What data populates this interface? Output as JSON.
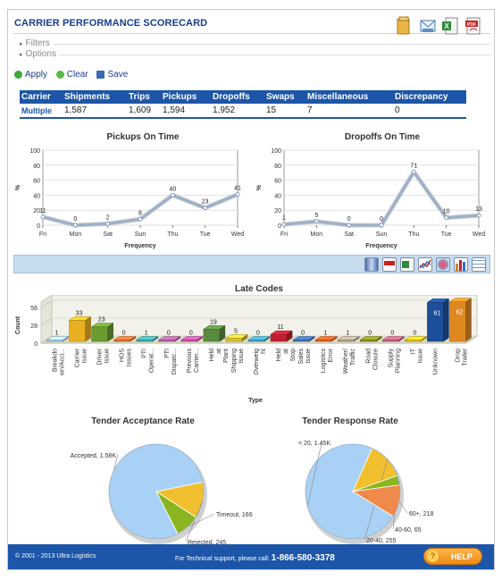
{
  "header": {
    "title": "CARRIER PERFORMANCE SCORECARD",
    "export_icons": [
      {
        "name": "folder-icon",
        "label": "",
        "color": "#d9a23a"
      },
      {
        "name": "email-icon",
        "label": "",
        "color": "#5a8fc8"
      },
      {
        "name": "excel-icon",
        "label": "X",
        "color": "#2e8b3a"
      },
      {
        "name": "pdf-icon",
        "label": "PDF",
        "color": "#c82020"
      }
    ]
  },
  "collapsers": {
    "filters": "Filters",
    "options": "Options"
  },
  "actions": {
    "apply": "Apply",
    "clear": "Clear",
    "save": "Save"
  },
  "summary": {
    "headers": [
      "Carrier",
      "Shipments",
      "Trips",
      "Pickups",
      "Dropoffs",
      "Swaps",
      "Miscellaneous",
      "Discrepancy"
    ],
    "row": [
      "Multiple",
      "1,587",
      "1,609",
      "1,594",
      "1,952",
      "15",
      "7",
      "0"
    ]
  },
  "toolbar_icons": [
    "cylinder-chart-icon",
    "pdf-icon",
    "excel-icon",
    "line-chart-icon",
    "pie-chart-icon",
    "bar-chart-icon",
    "table-icon"
  ],
  "chart_data": [
    {
      "type": "line",
      "title": "Pickups On Time",
      "xlabel": "Frequency",
      "ylabel": "%",
      "categories": [
        "Fri",
        "Mon",
        "Sat",
        "Sun",
        "Thu",
        "Tue",
        "Wed"
      ],
      "values": [
        11,
        0,
        2,
        8,
        40,
        23,
        41
      ],
      "yticks": [
        "0",
        "20",
        "40",
        "60",
        "80",
        "100"
      ],
      "ylim": [
        0,
        100
      ]
    },
    {
      "type": "line",
      "title": "Dropoffs On Time",
      "xlabel": "Frequency",
      "ylabel": "%",
      "categories": [
        "Fri",
        "Mon",
        "Sat",
        "Sun",
        "Thu",
        "Tue",
        "Wed"
      ],
      "values": [
        1,
        5,
        0,
        0,
        71,
        10,
        13
      ],
      "yticks": [
        "0",
        "20",
        "40",
        "60",
        "80",
        "100"
      ],
      "ylim": [
        0,
        100
      ]
    },
    {
      "type": "bar",
      "title": "Late Codes",
      "xlabel": "Type",
      "ylabel": "Count",
      "yticks": [
        "0",
        "28",
        "56"
      ],
      "ylim": [
        0,
        56
      ],
      "categories": [
        "Breakdo wn/Acci...",
        "Carrier Issue",
        "Driver Issue",
        "HOS Issues",
        "PTI Operat...",
        "PTI Dispatc...",
        "Previous Carrier...",
        "Held at Plant",
        "Shipping Issue",
        "Overweig ht",
        "Held at Stop",
        "Sales Issue",
        "Logistics Error",
        "Weather/ Traffic",
        "Road Closure",
        "Supply Planning",
        "IT Issue",
        "Unknown",
        "Drop Trailer"
      ],
      "values": [
        1,
        33,
        23,
        0,
        1,
        0,
        0,
        19,
        5,
        0,
        11,
        0,
        1,
        1,
        0,
        0,
        0,
        61,
        62
      ],
      "colors": [
        "#a8c8e8",
        "#e8b020",
        "#6a9a30",
        "#e07030",
        "#40a8a8",
        "#b060a0",
        "#c050a0",
        "#5a8a40",
        "#d8c030",
        "#40a0c0",
        "#c02030",
        "#4070b0",
        "#e06020",
        "#b0a090",
        "#8a9020",
        "#c06080",
        "#e0c020",
        "#1d4f9a",
        "#e08820"
      ]
    },
    {
      "type": "pie",
      "title": "Tender Acceptance Rate",
      "slices": [
        {
          "label": "Accepted, 1.58K",
          "value": 1580,
          "color": "#a9d1f5"
        },
        {
          "label": "Rejected, 245",
          "value": 245,
          "color": "#f2c02e"
        },
        {
          "label": "Timeout, 166",
          "value": 166,
          "color": "#8ab520"
        }
      ]
    },
    {
      "type": "pie",
      "title": "Tender Response Rate",
      "slices": [
        {
          "label": "< 20, 1.45K",
          "value": 1450,
          "color": "#a9d1f5"
        },
        {
          "label": "20-40, 255",
          "value": 255,
          "color": "#f2c02e"
        },
        {
          "label": "40-60, 65",
          "value": 65,
          "color": "#8ab520"
        },
        {
          "label": "60+, 218",
          "value": 218,
          "color": "#f08a4a"
        }
      ]
    }
  ],
  "footer": {
    "copyright": "© 2001 - 2013 Ultra Logistics",
    "support_text": "For Technical support, please call:",
    "phone": "1-866-580-3378",
    "help": "HELP"
  }
}
